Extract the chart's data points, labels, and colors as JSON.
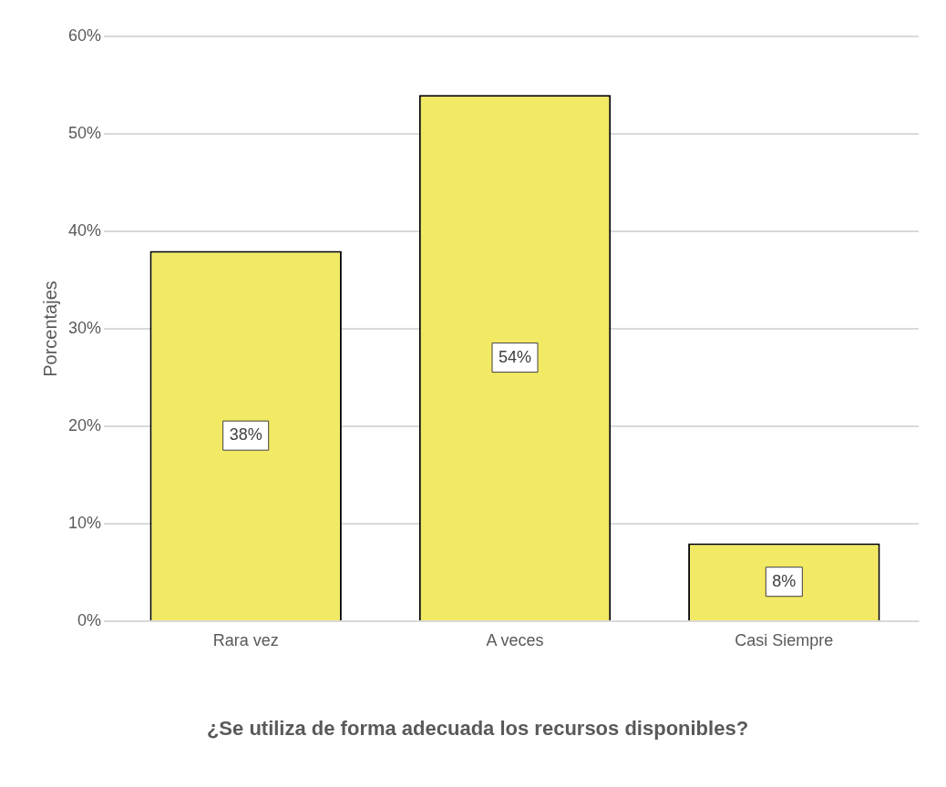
{
  "chart_data": {
    "type": "bar",
    "title": "¿Se utiliza de forma adecuada los recursos disponibles?",
    "ylabel": "Porcentajes",
    "categories": [
      "Rara vez",
      "A veces",
      "Casi Siempre"
    ],
    "values": [
      38,
      54,
      8
    ],
    "value_labels": [
      "38%",
      "54%",
      "8%"
    ],
    "color": "#f2e964",
    "ylim": [
      0,
      60
    ],
    "yticks": [
      {
        "value": 0,
        "label": "0%"
      },
      {
        "value": 10,
        "label": "10%"
      },
      {
        "value": 20,
        "label": "20%"
      },
      {
        "value": 30,
        "label": "30%"
      },
      {
        "value": 40,
        "label": "40%"
      },
      {
        "value": 50,
        "label": "50%"
      },
      {
        "value": 60,
        "label": "60%"
      }
    ],
    "grid": "y",
    "legend": false
  }
}
